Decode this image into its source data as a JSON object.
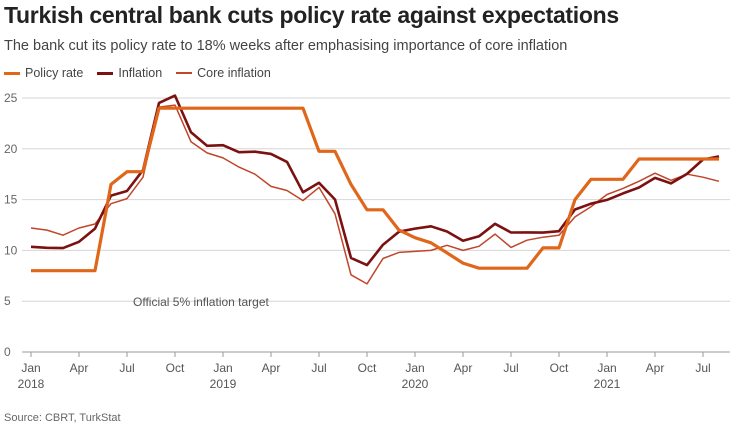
{
  "header": {
    "title": "Turkish central bank cuts policy rate against expectations",
    "subtitle": "The bank cut its policy rate to 18% weeks after emphasising importance of core inflation"
  },
  "source": "Source: CBRT, TurkStat",
  "chart_data": {
    "type": "line",
    "title": "Turkish central bank cuts policy rate against expectations",
    "xlabel": "",
    "ylabel": "",
    "ylim": [
      0,
      25
    ],
    "yticks": [
      0,
      5,
      10,
      15,
      20,
      25
    ],
    "grid": true,
    "legend_placement": "top-left",
    "x_start": "Jan 2018",
    "x_ticks": [
      {
        "month": 0,
        "label": "Jan",
        "year": "2018"
      },
      {
        "month": 3,
        "label": "Apr"
      },
      {
        "month": 6,
        "label": "Jul"
      },
      {
        "month": 9,
        "label": "Oct"
      },
      {
        "month": 12,
        "label": "Jan",
        "year": "2019"
      },
      {
        "month": 15,
        "label": "Apr"
      },
      {
        "month": 18,
        "label": "Jul"
      },
      {
        "month": 21,
        "label": "Oct"
      },
      {
        "month": 24,
        "label": "Jan",
        "year": "2020"
      },
      {
        "month": 27,
        "label": "Apr"
      },
      {
        "month": 30,
        "label": "Jul"
      },
      {
        "month": 33,
        "label": "Oct"
      },
      {
        "month": 36,
        "label": "Jan",
        "year": "2021"
      },
      {
        "month": 39,
        "label": "Apr"
      },
      {
        "month": 42,
        "label": "Jul"
      }
    ],
    "annotation": "Official 5% inflation target",
    "series": [
      {
        "name": "Policy rate",
        "color": "#e0661a",
        "width": 3.2,
        "values": [
          8,
          8,
          8,
          8,
          8,
          16.5,
          17.75,
          17.75,
          24,
          24,
          24,
          24,
          24,
          24,
          24,
          24,
          24,
          24,
          19.75,
          19.75,
          16.5,
          14,
          14,
          12,
          11.25,
          10.75,
          9.75,
          8.75,
          8.25,
          8.25,
          8.25,
          8.25,
          10.25,
          10.25,
          15,
          17,
          17,
          17,
          19,
          19,
          19,
          19,
          19,
          19
        ]
      },
      {
        "name": "Inflation",
        "color": "#7b1111",
        "width": 2.6,
        "values": [
          10.35,
          10.26,
          10.23,
          10.85,
          12.15,
          15.39,
          15.85,
          17.9,
          24.52,
          25.24,
          21.62,
          20.3,
          20.35,
          19.67,
          19.71,
          19.5,
          18.71,
          15.72,
          16.65,
          15.01,
          9.26,
          8.55,
          10.56,
          11.84,
          12.15,
          12.37,
          11.86,
          10.94,
          11.39,
          12.62,
          11.76,
          11.77,
          11.75,
          11.89,
          14.03,
          14.6,
          14.97,
          15.61,
          16.19,
          17.14,
          16.59,
          17.53,
          18.95,
          19.25
        ]
      },
      {
        "name": "Core inflation",
        "color": "#c0452a",
        "width": 1.5,
        "values": [
          12.2,
          12.0,
          11.5,
          12.2,
          12.6,
          14.6,
          15.1,
          17.2,
          24.1,
          24.3,
          20.7,
          19.6,
          19.1,
          18.2,
          17.5,
          16.3,
          15.9,
          14.9,
          16.2,
          13.6,
          7.6,
          6.7,
          9.2,
          9.8,
          9.9,
          10.0,
          10.5,
          10.0,
          10.4,
          11.6,
          10.3,
          11.0,
          11.3,
          11.5,
          13.3,
          14.3,
          15.5,
          16.1,
          16.8,
          17.6,
          16.9,
          17.5,
          17.2,
          16.8
        ]
      }
    ]
  }
}
